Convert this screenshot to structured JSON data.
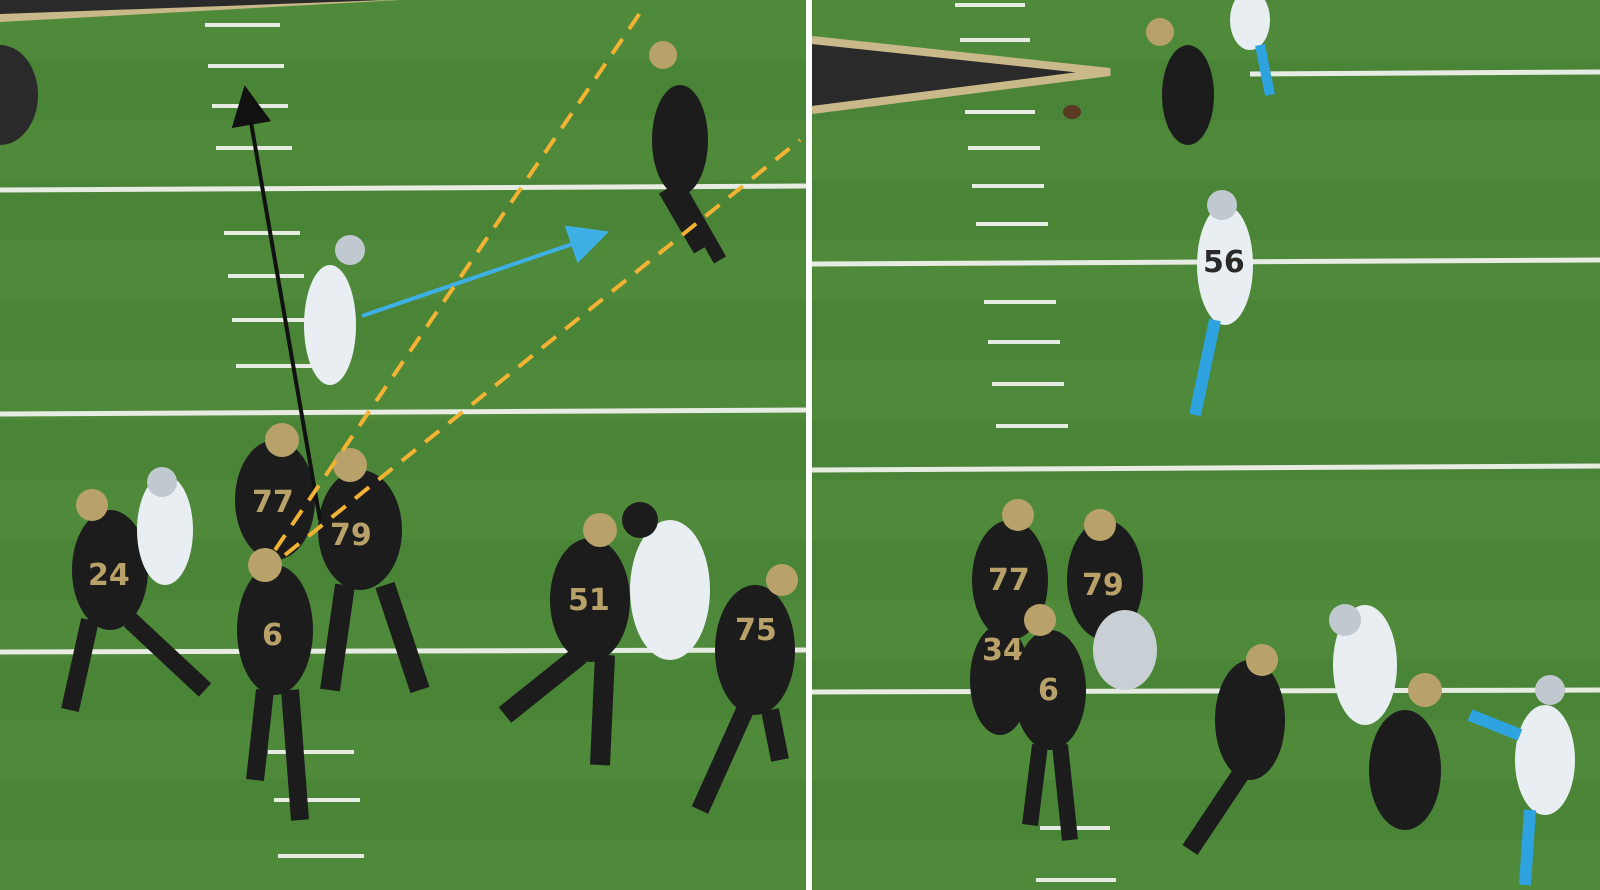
{
  "colors": {
    "turf": "#4f8a3a",
    "turf_dark": "#467e33",
    "yard_line": "#e6ece2",
    "saints_black": "#1c1c1c",
    "saints_gold": "#b8a26a",
    "panthers_white": "#e8eef2",
    "panthers_blue": "#2ea3e0",
    "route_arrow_black": "#111111",
    "route_arrow_blue": "#3fb0e6",
    "passing_lane_dashed": "#f2b233"
  },
  "left_panel": {
    "jersey_numbers": [
      "24",
      "77",
      "79",
      "6",
      "51",
      "75"
    ],
    "annotations": [
      "black-arrow",
      "blue-arrow",
      "orange-dashed-lane"
    ]
  },
  "right_panel": {
    "jersey_numbers": [
      "56",
      "77",
      "79",
      "6",
      "34"
    ]
  }
}
